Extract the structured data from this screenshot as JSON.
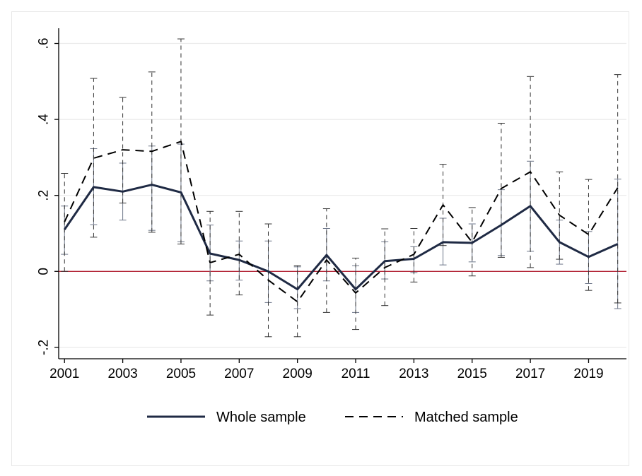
{
  "chart_data": {
    "type": "line",
    "title": "",
    "xlabel": "",
    "ylabel": "",
    "x": [
      2001,
      2002,
      2003,
      2004,
      2005,
      2006,
      2007,
      2008,
      2009,
      2010,
      2011,
      2012,
      2013,
      2014,
      2015,
      2016,
      2017,
      2018,
      2019,
      2020
    ],
    "xticks": [
      2001,
      2003,
      2005,
      2007,
      2009,
      2011,
      2013,
      2015,
      2017,
      2019
    ],
    "xtick_labels": [
      "2001",
      "2003",
      "2005",
      "2007",
      "2009",
      "2011",
      "2013",
      "2015",
      "2017",
      "2019"
    ],
    "yticks": [
      -0.2,
      0,
      0.2,
      0.4,
      0.6
    ],
    "ytick_labels": [
      "-.2",
      "0",
      ".2",
      ".4",
      ".6"
    ],
    "ylim": [
      -0.23,
      0.64
    ],
    "xlim": [
      2000.8,
      2020.3
    ],
    "grid": "horizontal",
    "reference_line": {
      "y": 0,
      "color": "#b22234"
    },
    "legend_position": "bottom",
    "series": [
      {
        "name": "Whole sample",
        "style": "solid",
        "color": "#1f2a44",
        "values": [
          0.11,
          0.222,
          0.21,
          0.228,
          0.208,
          0.047,
          0.03,
          0.0,
          -0.047,
          0.043,
          -0.047,
          0.027,
          0.033,
          0.077,
          0.075,
          0.122,
          0.172,
          0.077,
          0.038,
          0.072
        ],
        "ci_lower": [
          0.045,
          0.123,
          0.135,
          0.108,
          0.078,
          -0.025,
          -0.023,
          -0.082,
          -0.098,
          -0.025,
          -0.108,
          -0.02,
          -0.003,
          0.017,
          0.025,
          0.042,
          0.053,
          0.019,
          -0.032,
          -0.098
        ],
        "ci_upper": [
          0.172,
          0.323,
          0.285,
          0.33,
          0.335,
          0.122,
          0.08,
          0.08,
          0.012,
          0.113,
          0.015,
          0.078,
          0.065,
          0.14,
          0.125,
          0.215,
          0.29,
          0.135,
          0.105,
          0.243
        ]
      },
      {
        "name": "Matched sample",
        "style": "dashed",
        "color": "#000000",
        "values": [
          0.13,
          0.298,
          0.32,
          0.316,
          0.342,
          0.023,
          0.045,
          -0.023,
          -0.08,
          0.03,
          -0.057,
          0.01,
          0.045,
          0.175,
          0.077,
          0.218,
          0.262,
          0.148,
          0.097,
          0.22
        ],
        "ci_lower": [
          0.0,
          0.09,
          0.18,
          0.103,
          0.072,
          -0.115,
          -0.062,
          -0.172,
          -0.172,
          -0.108,
          -0.153,
          -0.09,
          -0.028,
          0.068,
          -0.012,
          0.037,
          0.01,
          0.032,
          -0.05,
          -0.083
        ],
        "ci_upper": [
          0.258,
          0.508,
          0.458,
          0.525,
          0.612,
          0.158,
          0.158,
          0.125,
          0.015,
          0.165,
          0.035,
          0.112,
          0.113,
          0.282,
          0.168,
          0.39,
          0.513,
          0.262,
          0.242,
          0.518
        ]
      }
    ]
  },
  "legend": {
    "items": [
      "Whole sample",
      "Matched sample"
    ]
  }
}
